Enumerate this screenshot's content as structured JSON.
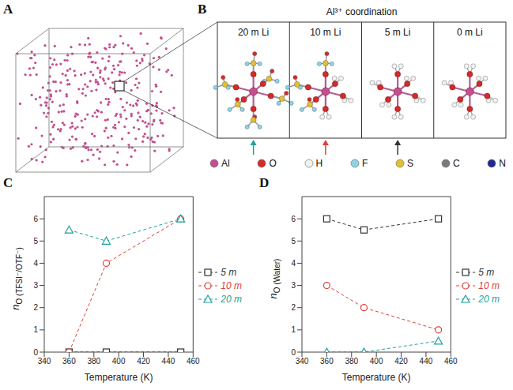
{
  "panel_letters": [
    "A",
    "B",
    "C",
    "D"
  ],
  "panel_b": {
    "title": "Al³⁺ coordination",
    "columns": [
      "20 m Li",
      "10 m Li",
      "5 m Li",
      "0 m Li"
    ]
  },
  "atoms": [
    {
      "label": "Al",
      "color": "#c2508f"
    },
    {
      "label": "O",
      "color": "#d42a2a"
    },
    {
      "label": "H",
      "color": "#f2f2f2"
    },
    {
      "label": "F",
      "color": "#8fd3e6"
    },
    {
      "label": "S",
      "color": "#e2c032"
    },
    {
      "label": "C",
      "color": "#7a7a7a"
    },
    {
      "label": "N",
      "color": "#1f2a8f"
    }
  ],
  "chart_data": [
    {
      "type": "line",
      "x": [
        360,
        390,
        450
      ],
      "xlabel": "Temperature (K)",
      "ylabel": "n",
      "ylabel_subscript": "O (TFSI⁻/OTF⁻)",
      "xlim": [
        340,
        460
      ],
      "xticks": [
        340,
        360,
        380,
        400,
        420,
        440,
        460
      ],
      "ylim": [
        0,
        7
      ],
      "yticks": [
        0,
        1,
        2,
        3,
        4,
        5,
        6
      ],
      "legend": "right",
      "line_style": "dashed",
      "series": [
        {
          "name": "5 m",
          "color": "#333333",
          "marker": "square",
          "values": [
            0,
            0,
            0
          ]
        },
        {
          "name": "10 m",
          "color": "#e0403a",
          "marker": "circle",
          "values": [
            0,
            4,
            6
          ]
        },
        {
          "name": "20 m",
          "color": "#1aa39a",
          "marker": "triangle",
          "values": [
            5.5,
            5,
            6
          ]
        }
      ]
    },
    {
      "type": "line",
      "x": [
        360,
        390,
        450
      ],
      "xlabel": "Temperature (K)",
      "ylabel": "n",
      "ylabel_subscript": "O (Water)",
      "xlim": [
        340,
        460
      ],
      "xticks": [
        340,
        360,
        380,
        400,
        420,
        440,
        460
      ],
      "ylim": [
        0,
        7
      ],
      "yticks": [
        0,
        1,
        2,
        3,
        4,
        5,
        6
      ],
      "legend": "right",
      "line_style": "dashed",
      "series": [
        {
          "name": "5 m",
          "color": "#333333",
          "marker": "square",
          "values": [
            6,
            5.5,
            6
          ]
        },
        {
          "name": "10 m",
          "color": "#e0403a",
          "marker": "circle",
          "values": [
            3,
            2,
            1
          ]
        },
        {
          "name": "20 m",
          "color": "#1aa39a",
          "marker": "triangle",
          "values": [
            0,
            0,
            0.5
          ]
        }
      ]
    }
  ]
}
